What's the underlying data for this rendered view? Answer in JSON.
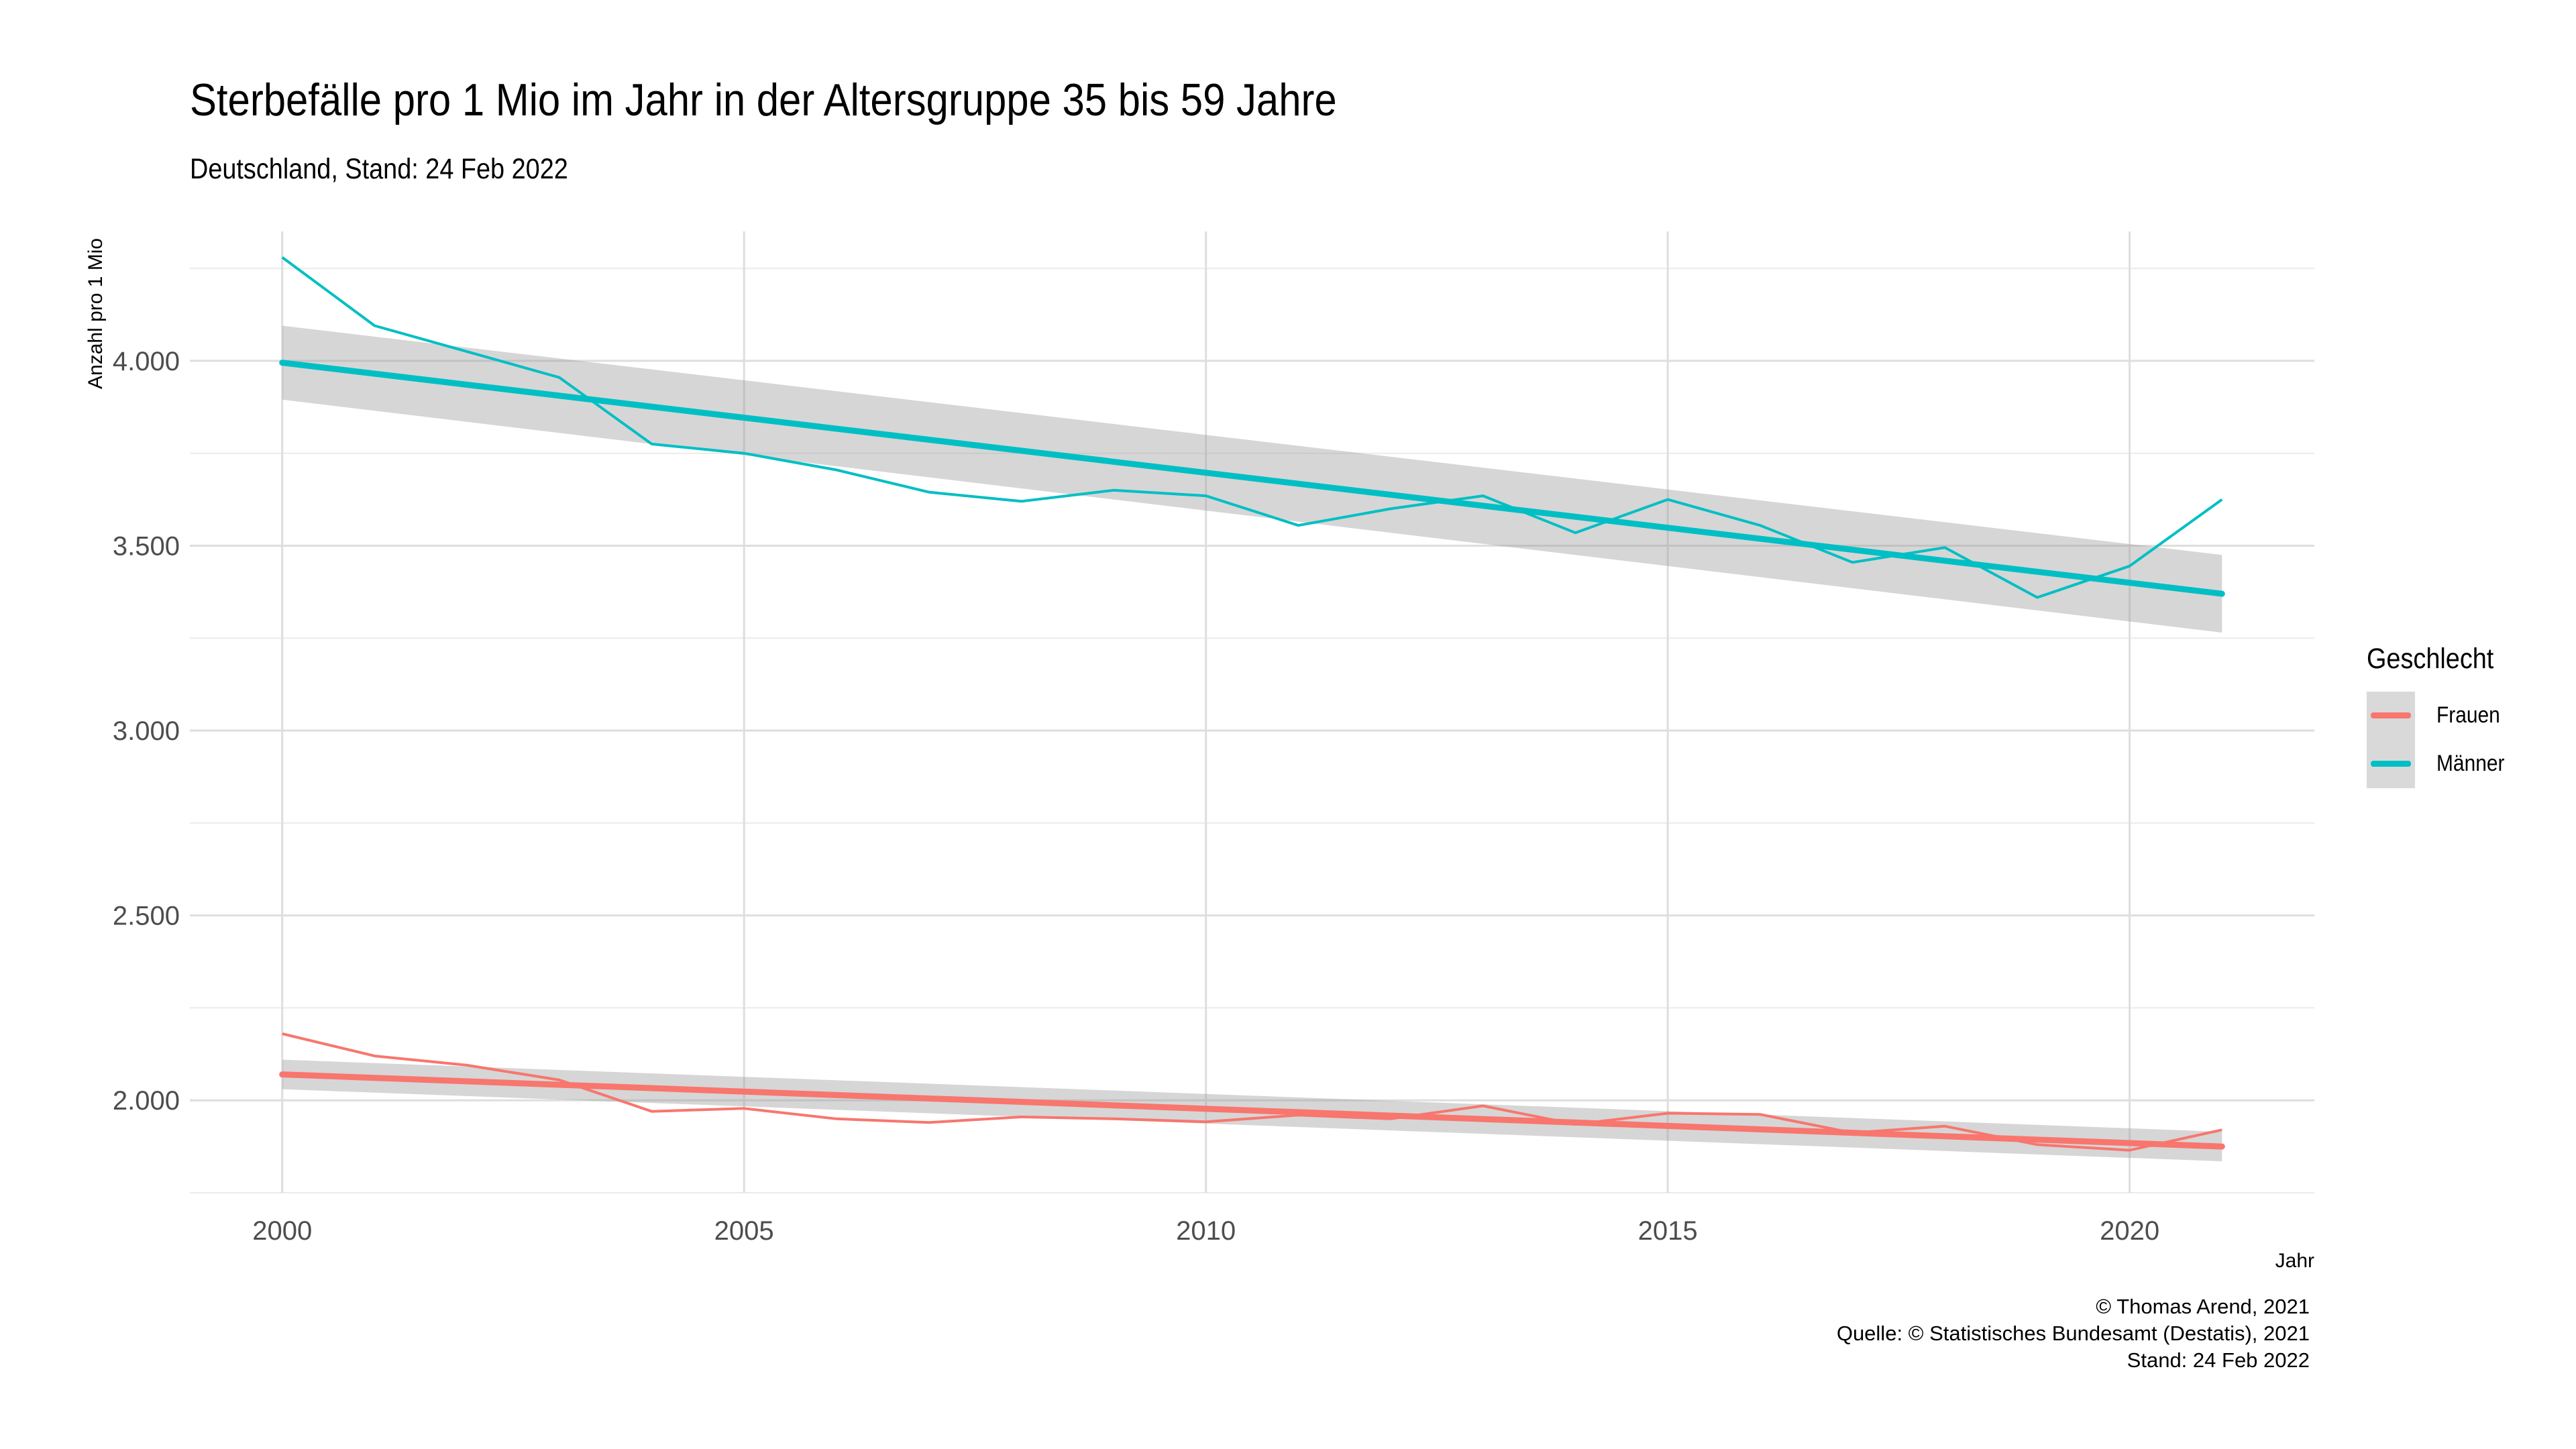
{
  "title": "Sterbefälle pro 1 Mio im Jahr in der Altersgruppe 35 bis 59 Jahre",
  "subtitle": "Deutschland, Stand: 24 Feb 2022",
  "caption": {
    "line1": "© Thomas Arend, 2021",
    "line2": "Quelle: © Statistisches Bundesamt (Destatis), 2021",
    "line3": "Stand: 24 Feb 2022"
  },
  "legend": {
    "title": "Geschlecht",
    "items": [
      {
        "label": "Frauen",
        "color": "#f8766d"
      },
      {
        "label": "Männer",
        "color": "#00bfc4"
      }
    ]
  },
  "chart_data": {
    "type": "line",
    "title": "Sterbefälle pro 1 Mio im Jahr in der Altersgruppe 35 bis 59 Jahre",
    "subtitle": "Deutschland, Stand: 24 Feb 2022",
    "xlabel": "Jahr",
    "ylabel": "Anzahl pro 1 Mio",
    "xlim": [
      1999,
      2022
    ],
    "ylim": [
      1750,
      4350
    ],
    "x_ticks": [
      2000,
      2005,
      2010,
      2015,
      2020
    ],
    "y_ticks": [
      2000,
      2500,
      3000,
      3500,
      4000
    ],
    "y_tick_labels": [
      "2.000",
      "2.500",
      "3.000",
      "3.500",
      "4.000"
    ],
    "grid": true,
    "legend_position": "right",
    "x": [
      2000,
      2001,
      2002,
      2003,
      2004,
      2005,
      2006,
      2007,
      2008,
      2009,
      2010,
      2011,
      2012,
      2013,
      2014,
      2015,
      2016,
      2017,
      2018,
      2019,
      2020,
      2021
    ],
    "series": [
      {
        "name": "Frauen",
        "color": "#f8766d",
        "values": [
          2180,
          2120,
          2095,
          2055,
          1970,
          1978,
          1950,
          1940,
          1955,
          1950,
          1942,
          1960,
          1950,
          1985,
          1935,
          1965,
          1962,
          1912,
          1930,
          1880,
          1865,
          1920
        ],
        "trend": {
          "start": 2070,
          "end": 1875,
          "ci_start": [
            2030,
            2110
          ],
          "ci_end": [
            1835,
            1915
          ]
        }
      },
      {
        "name": "Männer",
        "color": "#00bfc4",
        "values": [
          4280,
          4095,
          4025,
          3955,
          3775,
          3750,
          3705,
          3645,
          3620,
          3650,
          3635,
          3555,
          3600,
          3635,
          3535,
          3625,
          3555,
          3455,
          3495,
          3360,
          3445,
          3625
        ],
        "trend": {
          "start": 3995,
          "end": 3370,
          "ci_start": [
            3895,
            4095
          ],
          "ci_end": [
            3265,
            3475
          ]
        }
      }
    ]
  }
}
